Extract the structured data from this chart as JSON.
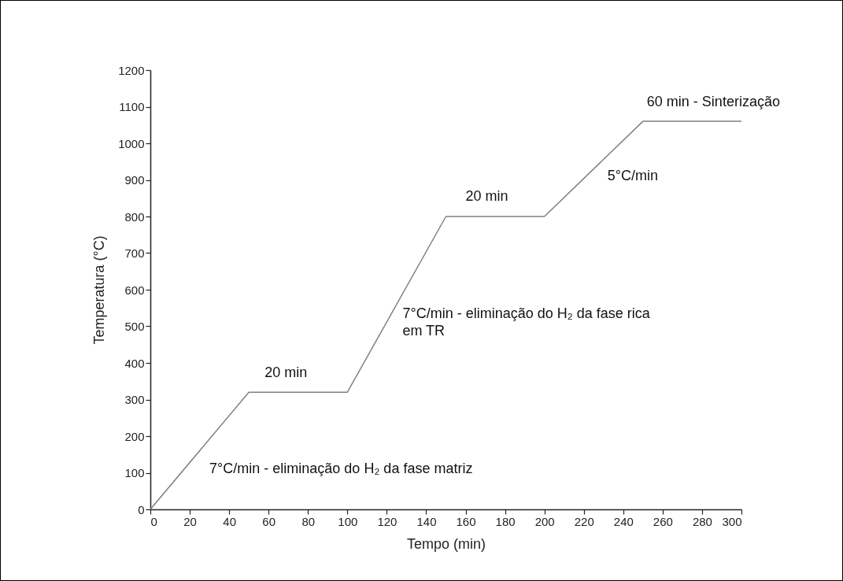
{
  "chart_data": {
    "type": "line",
    "xlabel": "Tempo (min)",
    "ylabel": "Temperatura (°C)",
    "x": [
      0,
      50,
      100,
      150,
      200,
      250,
      300
    ],
    "series": [
      {
        "color": "#808080",
        "values": [
          0,
          320,
          320,
          800,
          800,
          1060,
          1060
        ]
      }
    ],
    "xlim": [
      0,
      300
    ],
    "ylim": [
      0,
      1200
    ],
    "xticks": [
      0,
      20,
      40,
      60,
      80,
      100,
      120,
      140,
      160,
      180,
      200,
      220,
      240,
      260,
      280,
      300
    ],
    "yticks": [
      0,
      100,
      200,
      300,
      400,
      500,
      600,
      700,
      800,
      900,
      1000,
      1100,
      1200
    ],
    "grid": false,
    "marker": "none",
    "line_style": "solid",
    "annotations": [
      "20 min",
      "7°C/min - eliminação do H₂ da fase matriz",
      "7°C/min - eliminação do H₂ da fase rica\nem TR",
      "20 min",
      "5°C/min",
      "60 min - Sinterização"
    ]
  }
}
